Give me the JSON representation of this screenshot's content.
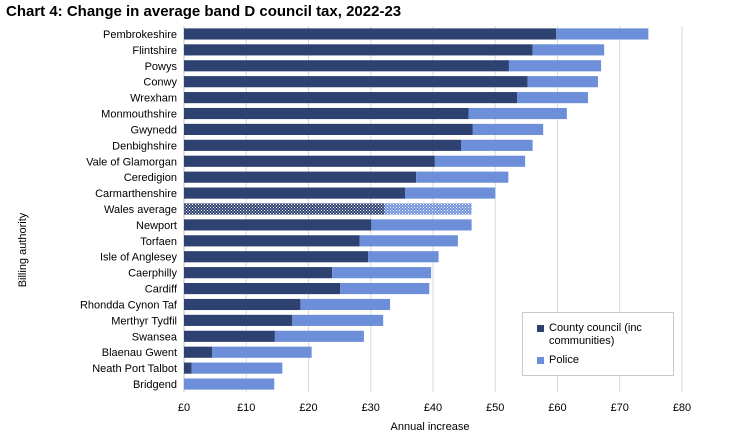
{
  "chart_data": {
    "type": "bar",
    "orientation": "horizontal",
    "stacked": true,
    "title": "Chart 4:  Change in average band D council tax, 2022-23",
    "xlabel": "Annual increase",
    "ylabel": "Billing authority",
    "xlim": [
      0,
      80
    ],
    "x_ticks": [
      "£0",
      "£10",
      "£20",
      "£30",
      "£40",
      "£50",
      "£60",
      "£70",
      "£80"
    ],
    "grid": "vertical",
    "legend_position": "bottom-right",
    "highlight_category": "Wales average",
    "categories": [
      "Pembrokeshire",
      "Flintshire",
      "Powys",
      "Conwy",
      "Wrexham",
      "Monmouthshire",
      "Gwynedd",
      "Denbighshire",
      "Vale of Glamorgan",
      "Ceredigion",
      "Carmarthenshire",
      "Wales average",
      "Newport",
      "Torfaen",
      "Isle of Anglesey",
      "Caerphilly",
      "Cardiff",
      "Rhondda Cynon Taf",
      "Merthyr Tydfil",
      "Swansea",
      "Blaenau Gwent",
      "Neath Port Talbot",
      "Bridgend"
    ],
    "series": [
      {
        "name": "County council (inc communities)",
        "color": "#2e4272",
        "values": [
          59.8,
          56.0,
          52.2,
          55.2,
          53.5,
          45.7,
          46.4,
          44.5,
          40.3,
          37.3,
          35.5,
          32.2,
          30.1,
          28.2,
          29.6,
          23.8,
          25.1,
          18.7,
          17.4,
          14.6,
          4.5,
          1.2,
          0.0
        ]
      },
      {
        "name": "Police",
        "color": "#6d8fd9",
        "values": [
          14.8,
          11.5,
          14.8,
          11.3,
          11.4,
          15.8,
          11.3,
          11.5,
          14.5,
          14.8,
          14.5,
          14.0,
          16.1,
          15.8,
          11.3,
          15.9,
          14.3,
          14.4,
          14.6,
          14.3,
          16.0,
          14.6,
          14.5
        ]
      }
    ]
  }
}
